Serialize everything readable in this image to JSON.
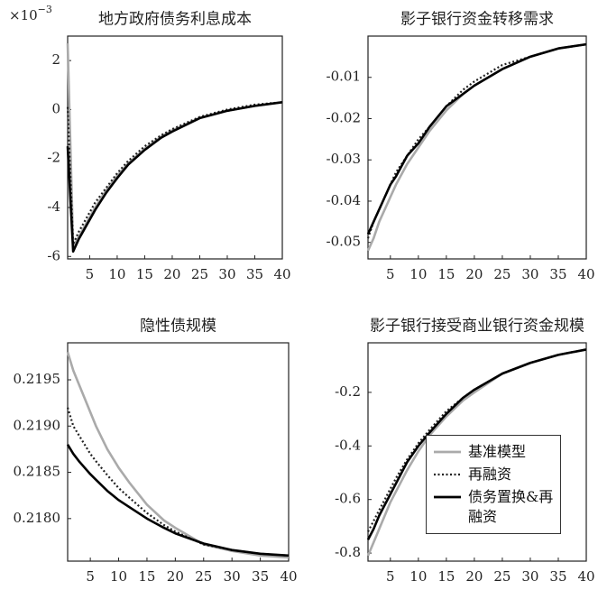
{
  "chart_data": [
    {
      "type": "line",
      "title": "地方政府债务利息成本",
      "y_multiplier": {
        "base": "×10",
        "exponent": "−3"
      },
      "x": [
        1,
        2,
        3,
        4,
        5,
        6,
        8,
        10,
        12,
        15,
        18,
        20,
        25,
        30,
        35,
        40
      ],
      "xlim": [
        1,
        40
      ],
      "xticks": [
        5,
        10,
        15,
        20,
        25,
        30,
        35,
        40
      ],
      "ylim": [
        -6.1,
        3
      ],
      "yticks": [
        -6,
        -4,
        -2,
        0,
        2
      ],
      "series": [
        {
          "color": "#aaaaaa",
          "style": "solid",
          "values": [
            2.7,
            -5.6,
            -5.2,
            -4.8,
            -4.4,
            -4.0,
            -3.3,
            -2.7,
            -2.2,
            -1.6,
            -1.1,
            -0.85,
            -0.35,
            -0.05,
            0.15,
            0.3
          ]
        },
        {
          "color": "#222222",
          "style": "dotted",
          "values": [
            0.1,
            -5.5,
            -5.0,
            -4.6,
            -4.2,
            -3.8,
            -3.2,
            -2.6,
            -2.1,
            -1.5,
            -1.05,
            -0.8,
            -0.3,
            0.0,
            0.2,
            0.3
          ]
        },
        {
          "color": "#000000",
          "style": "solid",
          "values": [
            -1.5,
            -5.8,
            -5.3,
            -4.9,
            -4.5,
            -4.1,
            -3.4,
            -2.8,
            -2.25,
            -1.65,
            -1.15,
            -0.9,
            -0.35,
            -0.05,
            0.15,
            0.3
          ]
        }
      ]
    },
    {
      "type": "line",
      "title": "影子银行资金转移需求",
      "x": [
        1,
        2,
        3,
        4,
        5,
        6,
        8,
        10,
        12,
        15,
        18,
        20,
        25,
        30,
        35,
        40
      ],
      "xlim": [
        1,
        40
      ],
      "xticks": [
        5,
        10,
        15,
        20,
        25,
        30,
        35,
        40
      ],
      "ylim": [
        -0.054,
        0
      ],
      "yticks": [
        -0.05,
        -0.04,
        -0.03,
        -0.02,
        -0.01
      ],
      "series": [
        {
          "color": "#aaaaaa",
          "style": "solid",
          "values": [
            -0.052,
            -0.049,
            -0.045,
            -0.042,
            -0.039,
            -0.036,
            -0.031,
            -0.027,
            -0.023,
            -0.018,
            -0.014,
            -0.012,
            -0.008,
            -0.005,
            -0.003,
            -0.002
          ]
        },
        {
          "color": "#222222",
          "style": "dotted",
          "values": [
            -0.049,
            -0.045,
            -0.042,
            -0.039,
            -0.036,
            -0.033,
            -0.029,
            -0.025,
            -0.022,
            -0.017,
            -0.013,
            -0.011,
            -0.007,
            -0.005,
            -0.003,
            -0.002
          ]
        },
        {
          "color": "#000000",
          "style": "solid",
          "values": [
            -0.048,
            -0.045,
            -0.042,
            -0.039,
            -0.036,
            -0.034,
            -0.029,
            -0.026,
            -0.022,
            -0.017,
            -0.014,
            -0.012,
            -0.008,
            -0.005,
            -0.003,
            -0.002
          ]
        }
      ]
    },
    {
      "type": "line",
      "title": "隐性债规模",
      "x": [
        1,
        2,
        3,
        4,
        5,
        6,
        8,
        10,
        12,
        15,
        18,
        20,
        25,
        30,
        35,
        40
      ],
      "xlim": [
        1,
        40
      ],
      "xticks": [
        5,
        10,
        15,
        20,
        25,
        30,
        35,
        40
      ],
      "ylim": [
        0.21754,
        0.2199
      ],
      "yticks": [
        {
          "value": 0.218,
          "label": "0.2180"
        },
        0.2185,
        {
          "value": 0.219,
          "label": "0.2190"
        },
        0.2195
      ],
      "series": [
        {
          "color": "#aaaaaa",
          "style": "solid",
          "values": [
            0.2198,
            0.2196,
            0.21945,
            0.2193,
            0.21915,
            0.219,
            0.21875,
            0.21855,
            0.21838,
            0.21815,
            0.21798,
            0.2179,
            0.21772,
            0.21765,
            0.2176,
            0.21758
          ]
        },
        {
          "color": "#222222",
          "style": "dotted",
          "values": [
            0.2192,
            0.219,
            0.2189,
            0.2188,
            0.2187,
            0.21862,
            0.21847,
            0.21833,
            0.21822,
            0.21806,
            0.21793,
            0.21786,
            0.21772,
            0.21766,
            0.21762,
            0.2176
          ]
        },
        {
          "color": "#000000",
          "style": "solid",
          "values": [
            0.2188,
            0.2187,
            0.21862,
            0.21855,
            0.21848,
            0.21842,
            0.2183,
            0.2182,
            0.21812,
            0.218,
            0.2179,
            0.21784,
            0.21773,
            0.21766,
            0.21762,
            0.2176
          ]
        }
      ]
    },
    {
      "type": "line",
      "title": "影子银行接受商业银行资金规模",
      "x": [
        1,
        2,
        3,
        4,
        5,
        6,
        8,
        10,
        12,
        15,
        18,
        20,
        25,
        30,
        35,
        40
      ],
      "xlim": [
        1,
        40
      ],
      "xticks": [
        5,
        10,
        15,
        20,
        25,
        30,
        35,
        40
      ],
      "ylim": [
        -0.83,
        -0.015
      ],
      "yticks": [
        -0.8,
        -0.6,
        -0.4,
        -0.2
      ],
      "legend": "lower right",
      "series": [
        {
          "name": "基准模型",
          "color": "#aaaaaa",
          "style": "solid",
          "values": [
            -0.81,
            -0.76,
            -0.71,
            -0.66,
            -0.61,
            -0.57,
            -0.49,
            -0.42,
            -0.36,
            -0.29,
            -0.23,
            -0.2,
            -0.13,
            -0.09,
            -0.06,
            -0.04
          ]
        },
        {
          "name": "再融资",
          "color": "#222222",
          "style": "dotted",
          "values": [
            -0.72,
            -0.68,
            -0.64,
            -0.6,
            -0.56,
            -0.52,
            -0.45,
            -0.39,
            -0.34,
            -0.27,
            -0.22,
            -0.19,
            -0.13,
            -0.09,
            -0.06,
            -0.04
          ]
        },
        {
          "name": "债务置换&再融资",
          "color": "#000000",
          "style": "solid",
          "values": [
            -0.75,
            -0.71,
            -0.66,
            -0.62,
            -0.58,
            -0.54,
            -0.46,
            -0.4,
            -0.35,
            -0.28,
            -0.22,
            -0.19,
            -0.13,
            -0.09,
            -0.06,
            -0.04
          ]
        }
      ]
    }
  ]
}
